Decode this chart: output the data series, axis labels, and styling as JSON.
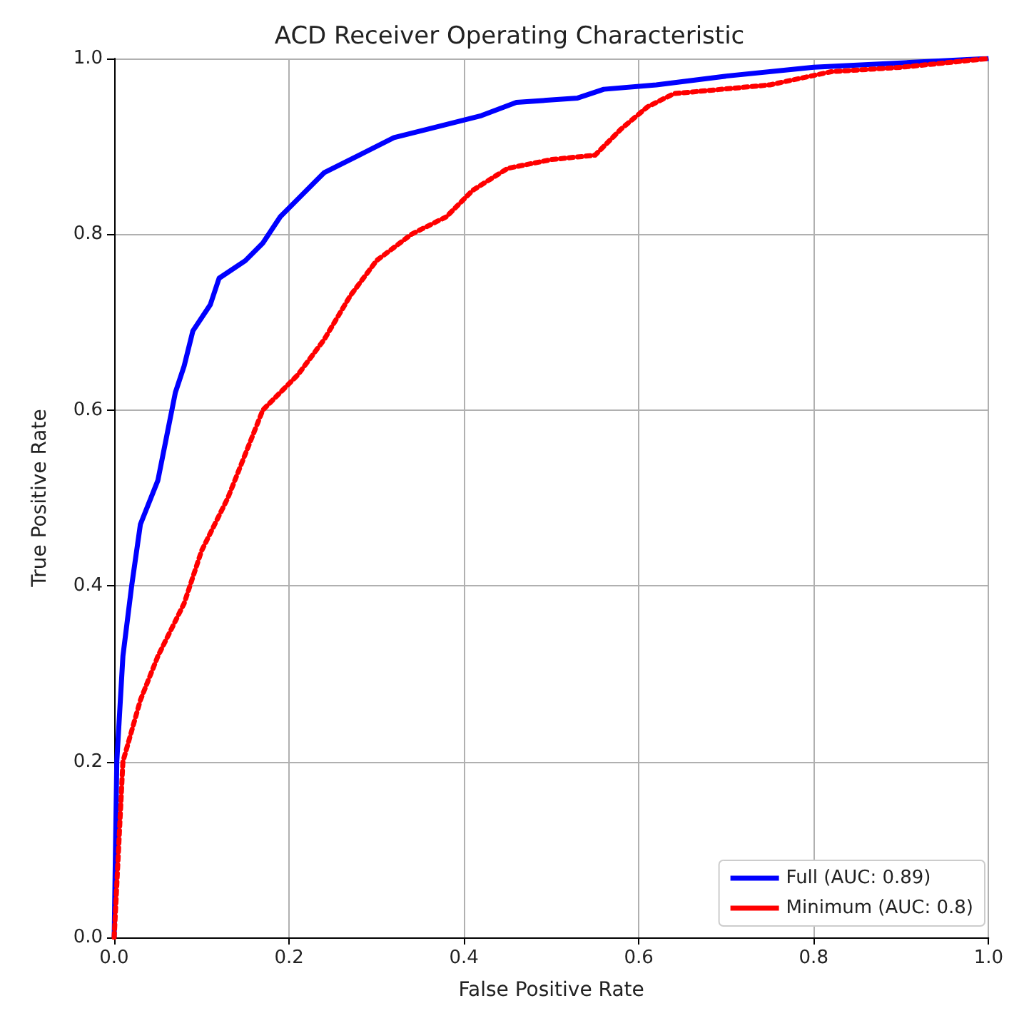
{
  "chart_data": {
    "type": "line",
    "title": "ACD Receiver Operating Characteristic",
    "xlabel": "False Positive Rate",
    "ylabel": "True Positive Rate",
    "xlim": [
      0,
      1
    ],
    "ylim": [
      0,
      1
    ],
    "xticks": [
      {
        "value": 0,
        "label": "0.0"
      },
      0.2,
      0.4,
      0.6,
      0.8,
      {
        "value": 1,
        "label": "1.0"
      }
    ],
    "yticks": [
      {
        "value": 0,
        "label": "0.0"
      },
      0.2,
      0.4,
      0.6,
      0.8,
      {
        "value": 1,
        "label": "1.0"
      }
    ],
    "grid": true,
    "legend": "bottom right",
    "marker": "none",
    "series": [
      {
        "name": "Full (AUC: 0.89)",
        "color": "#0000ff",
        "line_style": "solid",
        "x": [
          0,
          0.003,
          0.01,
          0.02,
          0.03,
          0.05,
          0.06,
          0.07,
          0.08,
          0.09,
          0.11,
          0.12,
          0.15,
          0.17,
          0.19,
          0.21,
          0.24,
          0.28,
          0.32,
          0.36,
          0.42,
          0.46,
          0.53,
          0.56,
          0.62,
          0.7,
          0.8,
          0.9,
          1
        ],
        "values": [
          0,
          0.2,
          0.32,
          0.4,
          0.47,
          0.52,
          0.57,
          0.62,
          0.65,
          0.69,
          0.72,
          0.75,
          0.77,
          0.79,
          0.82,
          0.84,
          0.87,
          0.89,
          0.91,
          0.92,
          0.935,
          0.95,
          0.955,
          0.965,
          0.97,
          0.98,
          0.99,
          0.995,
          1
        ]
      },
      {
        "name": "Minimum (AUC: 0.8)",
        "color": "#ff0000",
        "line_style": "dotted",
        "x": [
          0,
          0.01,
          0.03,
          0.05,
          0.08,
          0.1,
          0.13,
          0.15,
          0.17,
          0.19,
          0.21,
          0.24,
          0.27,
          0.3,
          0.34,
          0.38,
          0.41,
          0.45,
          0.5,
          0.55,
          0.58,
          0.61,
          0.64,
          0.75,
          0.82,
          0.9,
          1
        ],
        "values": [
          0,
          0.2,
          0.27,
          0.32,
          0.38,
          0.44,
          0.5,
          0.55,
          0.6,
          0.62,
          0.64,
          0.68,
          0.73,
          0.77,
          0.8,
          0.82,
          0.85,
          0.875,
          0.885,
          0.89,
          0.92,
          0.945,
          0.96,
          0.97,
          0.985,
          0.99,
          1
        ]
      }
    ]
  }
}
